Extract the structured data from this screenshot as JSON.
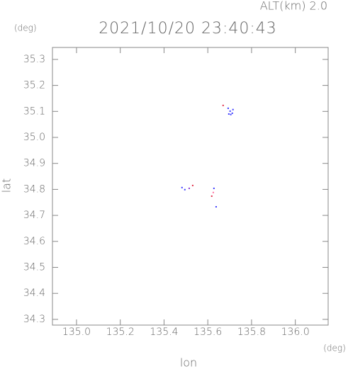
{
  "chart_data": {
    "type": "scatter",
    "title": "2021/10/20 23:40:43",
    "subtitle": "ALT(km) 2.0",
    "y_unit": "(deg)",
    "x_unit": "(deg)",
    "ylabel": "lat",
    "xlabel": "lon",
    "x": [
      135.67,
      135.693,
      135.702,
      135.712,
      135.696,
      135.715,
      135.705,
      135.482,
      135.495,
      135.515,
      135.531,
      135.628,
      135.625,
      135.618,
      135.638
    ],
    "values": [
      35.123,
      35.112,
      35.101,
      35.093,
      35.09,
      35.107,
      35.088,
      34.807,
      34.799,
      34.804,
      34.815,
      34.804,
      34.788,
      34.774,
      34.733
    ],
    "colors": [
      "#e0304a",
      "#3a3aff",
      "#3a3aff",
      "#3a3aff",
      "#3a3aff",
      "#3a3aff",
      "#3a3aff",
      "#3a3aff",
      "#3a3aff",
      "#8a3ad0",
      "#e0304a",
      "#3a3aff",
      "#ff70a0",
      "#e0304a",
      "#3a3aff"
    ],
    "xlim": [
      134.89,
      136.15
    ],
    "ylim": [
      34.278,
      35.346
    ],
    "xticks": [
      {
        "value": 135.0,
        "label": "135.0"
      },
      135.2,
      135.4,
      135.6,
      135.8,
      {
        "value": 136.0,
        "label": "136.0"
      }
    ],
    "yticks": [
      34.3,
      34.4,
      34.5,
      34.6,
      34.7,
      34.8,
      34.9,
      {
        "value": 35.0,
        "label": "35.0"
      },
      35.1,
      35.2,
      35.3
    ]
  }
}
